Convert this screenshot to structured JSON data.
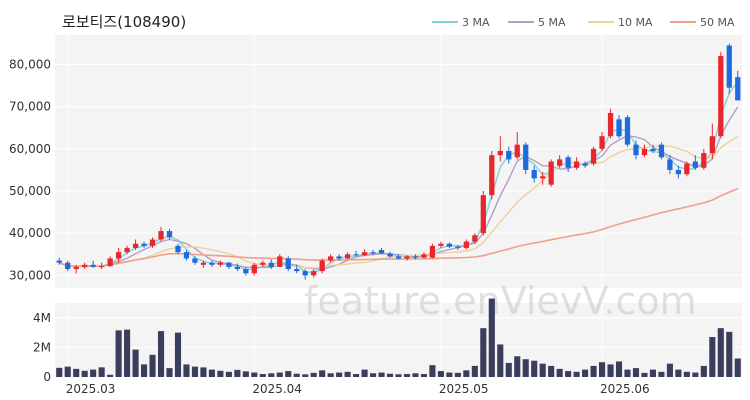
{
  "chart_data": {
    "type": "candlestick",
    "title": "로보티즈(108490)",
    "watermark": "feature.enVievV.com",
    "price_axis": {
      "ylim": [
        27000,
        87000
      ],
      "ticks": [
        30000,
        40000,
        50000,
        60000,
        70000,
        80000
      ],
      "tick_labels": [
        "30,000",
        "40,000",
        "50,000",
        "60,000",
        "70,000",
        "80,000"
      ]
    },
    "volume_axis": {
      "ylim": [
        0,
        5000000
      ],
      "ticks": [
        0,
        2000000,
        4000000
      ],
      "tick_labels": [
        "0",
        "2M",
        "4M"
      ]
    },
    "x_labels": [
      {
        "index": 1,
        "label": "2025.03"
      },
      {
        "index": 23,
        "label": "2025.04"
      },
      {
        "index": 45,
        "label": "2025.05"
      },
      {
        "index": 64,
        "label": "2025.06"
      }
    ],
    "up_color": "#e8262d",
    "down_color": "#1e6be0",
    "volume_color": "#3b3d5c",
    "legend": [
      {
        "label": "3 MA",
        "color": "#7fd3d6"
      },
      {
        "label": "5 MA",
        "color": "#b49ec8"
      },
      {
        "label": "10 MA",
        "color": "#f0cf9a"
      },
      {
        "label": "50 MA",
        "color": "#f0a088"
      }
    ],
    "candles": [
      [
        33500,
        34200,
        32500,
        33000
      ],
      [
        33000,
        33500,
        31000,
        31500
      ],
      [
        31500,
        32500,
        30500,
        32000
      ],
      [
        32000,
        33000,
        31500,
        32500
      ],
      [
        32500,
        33500,
        31800,
        32000
      ],
      [
        32000,
        33000,
        31500,
        32200
      ],
      [
        32200,
        34500,
        32000,
        34000
      ],
      [
        34000,
        36500,
        33000,
        35500
      ],
      [
        35500,
        37000,
        35000,
        36500
      ],
      [
        36500,
        38500,
        36000,
        37500
      ],
      [
        37500,
        38000,
        36500,
        37000
      ],
      [
        37000,
        39000,
        36500,
        38500
      ],
      [
        38500,
        41500,
        38000,
        40500
      ],
      [
        40500,
        41000,
        38500,
        39000
      ],
      [
        37000,
        37500,
        35000,
        35500
      ],
      [
        35500,
        36000,
        33500,
        34000
      ],
      [
        34000,
        34500,
        32500,
        33000
      ],
      [
        32500,
        33500,
        31800,
        33000
      ],
      [
        33000,
        33500,
        32000,
        32500
      ],
      [
        32500,
        33500,
        32000,
        33000
      ],
      [
        33000,
        33200,
        31500,
        32000
      ],
      [
        32000,
        32800,
        31000,
        31500
      ],
      [
        31500,
        32000,
        30000,
        30500
      ],
      [
        30500,
        33000,
        30000,
        32500
      ],
      [
        32500,
        33500,
        32000,
        33000
      ],
      [
        33000,
        33800,
        31500,
        32000
      ],
      [
        32000,
        35000,
        32000,
        34500
      ],
      [
        34000,
        34500,
        31000,
        31500
      ],
      [
        31500,
        32500,
        30500,
        31000
      ],
      [
        31000,
        31500,
        29000,
        30000
      ],
      [
        30000,
        31500,
        29500,
        31000
      ],
      [
        31000,
        34000,
        30500,
        33500
      ],
      [
        33500,
        35000,
        33000,
        34500
      ],
      [
        34500,
        35000,
        33500,
        34000
      ],
      [
        34000,
        35500,
        33800,
        35000
      ],
      [
        35000,
        35800,
        34500,
        34800
      ],
      [
        34800,
        36200,
        34500,
        35500
      ],
      [
        35500,
        36000,
        34800,
        35200
      ],
      [
        36000,
        36500,
        35000,
        35200
      ],
      [
        35200,
        35600,
        34200,
        34500
      ],
      [
        34500,
        35000,
        33800,
        34000
      ],
      [
        34000,
        34800,
        33500,
        34500
      ],
      [
        34500,
        35000,
        33800,
        34200
      ],
      [
        34200,
        35500,
        34000,
        35000
      ],
      [
        34200,
        37500,
        34000,
        37000
      ],
      [
        37000,
        38000,
        36500,
        37500
      ],
      [
        37500,
        37800,
        36500,
        36800
      ],
      [
        36800,
        37200,
        36000,
        36500
      ],
      [
        36500,
        38500,
        36200,
        38000
      ],
      [
        38000,
        40000,
        37500,
        39500
      ],
      [
        40000,
        50000,
        39500,
        49000
      ],
      [
        49000,
        59500,
        48000,
        58500
      ],
      [
        58500,
        63000,
        57000,
        59500
      ],
      [
        59500,
        60500,
        56500,
        57500
      ],
      [
        58000,
        64000,
        57500,
        61000
      ],
      [
        61000,
        61500,
        54000,
        55000
      ],
      [
        55000,
        56000,
        52000,
        53000
      ],
      [
        53000,
        54500,
        51500,
        53500
      ],
      [
        51500,
        57500,
        51000,
        57000
      ],
      [
        56000,
        58500,
        55500,
        57500
      ],
      [
        58000,
        58500,
        54500,
        55500
      ],
      [
        55500,
        58000,
        55000,
        57000
      ],
      [
        56500,
        57000,
        55500,
        56000
      ],
      [
        56500,
        60500,
        56000,
        60000
      ],
      [
        60000,
        64000,
        59500,
        63000
      ],
      [
        63000,
        69500,
        62500,
        68500
      ],
      [
        67000,
        68000,
        62500,
        63000
      ],
      [
        67500,
        68000,
        60500,
        61000
      ],
      [
        61000,
        62000,
        57500,
        58500
      ],
      [
        58500,
        61000,
        58000,
        60000
      ],
      [
        60000,
        61000,
        59000,
        59500
      ],
      [
        61000,
        61500,
        57500,
        58000
      ],
      [
        57500,
        58500,
        54000,
        55000
      ],
      [
        55000,
        56000,
        53000,
        54000
      ],
      [
        54000,
        57000,
        53500,
        56500
      ],
      [
        57000,
        58500,
        55000,
        55500
      ],
      [
        55500,
        60000,
        55000,
        59000
      ],
      [
        59000,
        66000,
        57500,
        63000
      ],
      [
        63000,
        83000,
        62500,
        82000
      ],
      [
        84500,
        85000,
        73000,
        74500
      ],
      [
        77000,
        78500,
        71500,
        71500
      ]
    ],
    "volumes": [
      0.62,
      0.7,
      0.55,
      0.42,
      0.5,
      0.65,
      0.15,
      3.15,
      3.2,
      1.85,
      0.85,
      1.5,
      3.1,
      0.6,
      3.0,
      0.85,
      0.7,
      0.65,
      0.5,
      0.42,
      0.35,
      0.48,
      0.38,
      0.3,
      0.2,
      0.25,
      0.3,
      0.4,
      0.22,
      0.18,
      0.28,
      0.45,
      0.25,
      0.3,
      0.35,
      0.2,
      0.5,
      0.25,
      0.3,
      0.22,
      0.18,
      0.2,
      0.25,
      0.2,
      0.8,
      0.4,
      0.3,
      0.28,
      0.45,
      0.75,
      3.3,
      5.3,
      2.2,
      0.95,
      1.4,
      1.2,
      1.1,
      0.9,
      0.75,
      0.55,
      0.4,
      0.35,
      0.5,
      0.75,
      1.0,
      0.85,
      1.05,
      0.5,
      0.6,
      0.28,
      0.5,
      0.35,
      0.9,
      0.5,
      0.35,
      0.3,
      0.75,
      2.7,
      3.3,
      3.05,
      1.25
    ]
  }
}
